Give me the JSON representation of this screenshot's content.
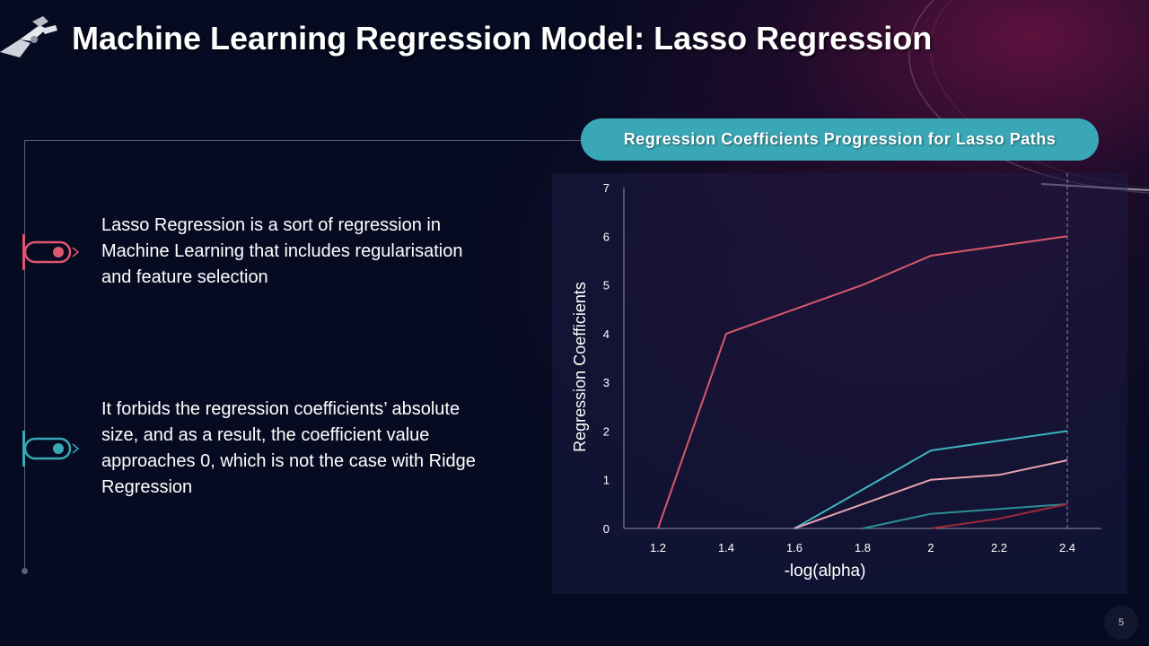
{
  "slide": {
    "title": "Machine Learning Regression Model: Lasso Regression",
    "page_number": "5"
  },
  "bullets": [
    {
      "text": "Lasso Regression is a sort of regression in Machine Learning that includes regularisation and feature selection",
      "color": "#e0566f"
    },
    {
      "text": "It forbids the regression coefficients’ absolute size, and as a result, the coefficient value approaches 0, which is not the case with Ridge Regression",
      "color": "#3aa7b6"
    }
  ],
  "chart_title": "Regression Coefficients Progression for Lasso Paths",
  "chart_data": {
    "type": "line",
    "title": "Regression Coefficients Progression for Lasso Paths",
    "xlabel": "-log(alpha)",
    "ylabel": "Regression Coefficients",
    "xlim": [
      1.1,
      2.5
    ],
    "ylim": [
      0,
      7
    ],
    "x_ticks": [
      "1.2",
      "1.4",
      "1.6",
      "1.8",
      "2",
      "2.2",
      "2.4"
    ],
    "y_ticks": [
      "0",
      "1",
      "2",
      "3",
      "4",
      "5",
      "6",
      "7"
    ],
    "reference_line_x": 2.4,
    "legend": "none",
    "grid": false,
    "series": [
      {
        "color": "#d9586a",
        "x": [
          1.2,
          1.4,
          1.6,
          1.8,
          2.0,
          2.2,
          2.4
        ],
        "y": [
          0,
          4.0,
          4.5,
          5.0,
          5.6,
          5.8,
          6.0
        ]
      },
      {
        "color": "#3db4c2",
        "x": [
          1.6,
          1.8,
          2.0,
          2.2,
          2.4
        ],
        "y": [
          0,
          0.8,
          1.6,
          1.8,
          2.0
        ]
      },
      {
        "color": "#e8a3b0",
        "x": [
          1.6,
          1.8,
          2.0,
          2.2,
          2.4
        ],
        "y": [
          0,
          0.5,
          1.0,
          1.1,
          1.4
        ]
      },
      {
        "color": "#2a8f98",
        "x": [
          1.8,
          2.0,
          2.2,
          2.4
        ],
        "y": [
          0,
          0.3,
          0.4,
          0.5
        ]
      },
      {
        "color": "#9c2a3c",
        "x": [
          2.0,
          2.2,
          2.4
        ],
        "y": [
          0,
          0.2,
          0.5
        ]
      }
    ]
  }
}
